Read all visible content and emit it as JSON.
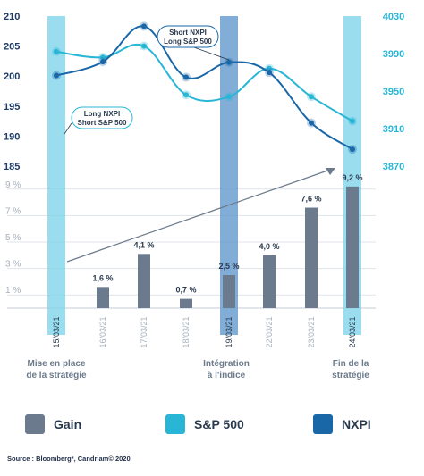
{
  "chart_data": {
    "type": "line",
    "title": "",
    "left_axis_ticks": [
      185,
      190,
      195,
      200,
      205,
      210
    ],
    "left_axis_range": [
      185,
      210
    ],
    "right_axis_ticks": [
      3870,
      3910,
      3950,
      3990,
      4030
    ],
    "right_axis_range": [
      3870,
      4030
    ],
    "percent_axis_ticks": [
      "1 %",
      "3 %",
      "5 %",
      "7 %",
      "9 %"
    ],
    "percent_axis_range": [
      0,
      10
    ],
    "categories": [
      "15/03/21",
      "16/03/21",
      "17/03/21",
      "18/03/21",
      "19/03/21",
      "22/03/21",
      "23/03/21",
      "24/03/21"
    ],
    "series": [
      {
        "name": "NXPI",
        "axis": "left",
        "values": [
          200.1,
          202.4,
          208.3,
          199.8,
          202.3,
          200.6,
          192.2,
          187.8
        ]
      },
      {
        "name": "S&P 500",
        "axis": "right",
        "values": [
          3992,
          3986,
          3998,
          3946,
          3944,
          3974,
          3944,
          3918
        ]
      },
      {
        "name": "Gain",
        "type": "bar",
        "axis": "percent",
        "values": [
          null,
          1.6,
          4.1,
          0.7,
          2.5,
          4.0,
          7.6,
          9.2
        ],
        "labels": [
          "",
          "1,6 %",
          "4,1 %",
          "0,7 %",
          "2,5 %",
          "4,0 %",
          "7,6 %",
          "9,2 %"
        ]
      }
    ],
    "highlight_dates": [
      0,
      4,
      7
    ],
    "annotations": {
      "box_short_line1": "Short NXPI",
      "box_short_line2": "Long S&P 500",
      "box_long_line1": "Long NXPI",
      "box_long_line2": "Short S&P 500",
      "phase_1_line1": "Mise en place",
      "phase_1_line2": "de la stratégie",
      "phase_2_line1": "Intégration",
      "phase_2_line2": "à l'indice",
      "phase_3_line1": "Fin de la",
      "phase_3_line2": "stratégie"
    },
    "colors": {
      "gain": "#6b7a8c",
      "sp500": "#29b6d6",
      "nxpi": "#1a67a8",
      "band_light": "#7fd4ea",
      "band_dark": "#6b9fcf",
      "left_axis_text": "#1f3b66",
      "right_axis_text": "#29b6d6",
      "percent_axis_text": "#a6b0bc"
    }
  },
  "legend": {
    "items": [
      {
        "label": "Gain",
        "color": "#6b7a8c"
      },
      {
        "label": "S&P 500",
        "color": "#29b6d6"
      },
      {
        "label": "NXPI",
        "color": "#1a67a8"
      }
    ]
  },
  "source": "Source : Bloomberg*, Candriam© 2020"
}
